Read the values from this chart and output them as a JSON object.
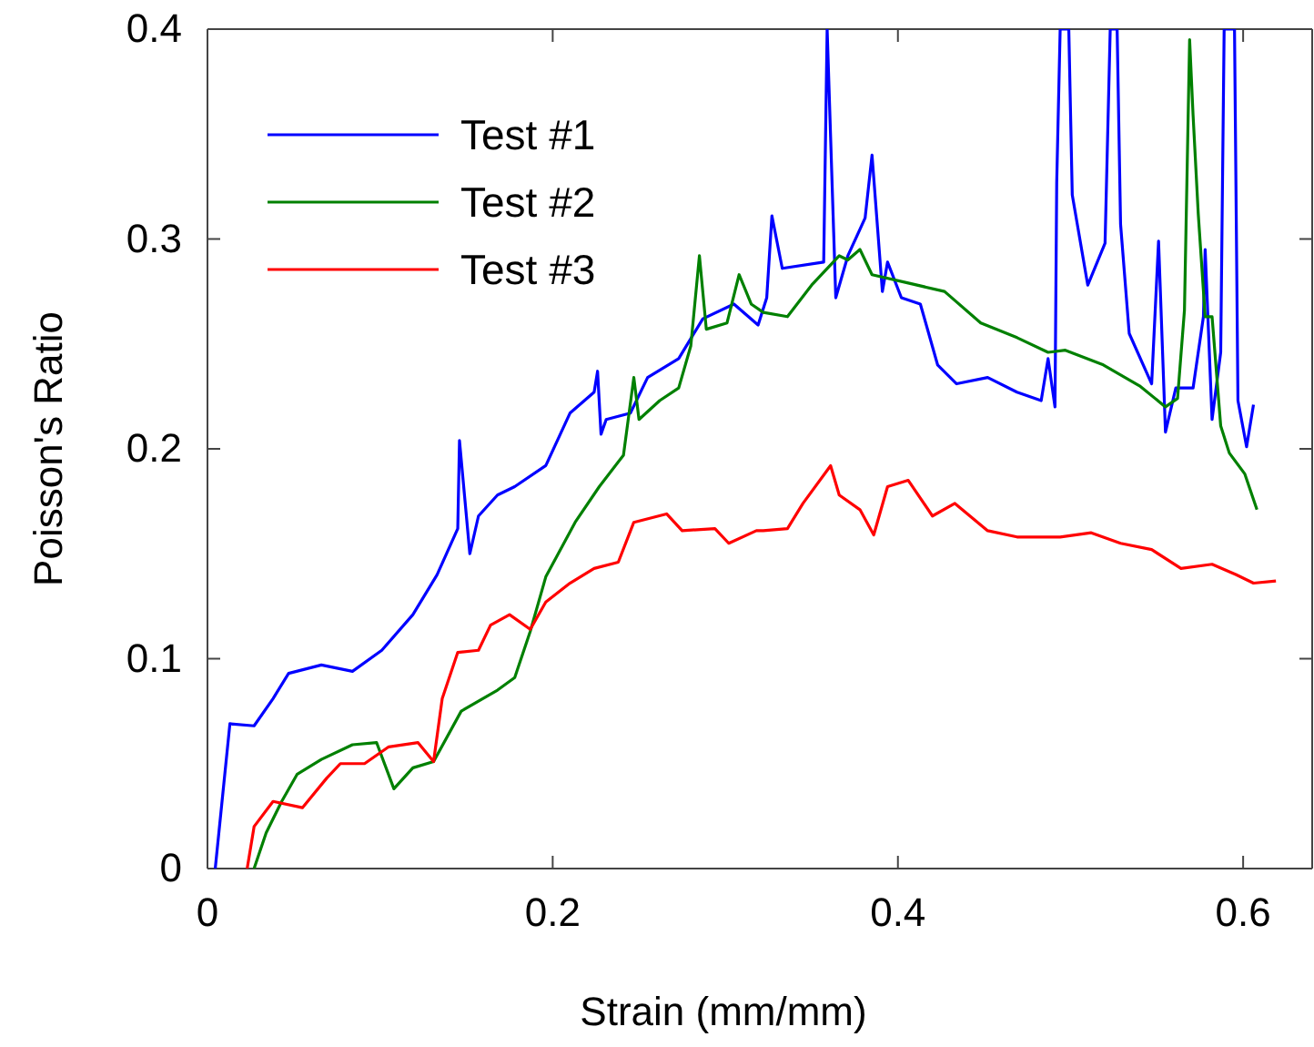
{
  "chart_data": {
    "type": "line",
    "xlabel": "Strain (mm/mm)",
    "ylabel": "Poisson's Ratio",
    "xlim": [
      0,
      0.64
    ],
    "ylim": [
      0,
      0.4
    ],
    "xticks": [
      0,
      0.2,
      0.4,
      0.6
    ],
    "yticks": [
      0,
      0.1,
      0.2,
      0.3,
      0.4
    ],
    "grid": false,
    "legend": "top left",
    "marker": "none",
    "line_style": "solid",
    "series": [
      {
        "name": "Test #1",
        "color": "#0000ff",
        "x": [
          0.0045,
          0.013,
          0.027,
          0.038,
          0.047,
          0.066,
          0.084,
          0.101,
          0.119,
          0.133,
          0.145,
          0.146,
          0.152,
          0.157,
          0.168,
          0.178,
          0.196,
          0.21,
          0.224,
          0.226,
          0.228,
          0.231,
          0.245,
          0.255,
          0.273,
          0.287,
          0.305,
          0.319,
          0.324,
          0.327,
          0.333,
          0.357,
          0.359,
          0.364,
          0.371,
          0.381,
          0.385,
          0.391,
          0.394,
          0.402,
          0.413,
          0.423,
          0.434,
          0.452,
          0.469,
          0.483,
          0.487,
          0.491,
          0.492,
          0.494,
          0.499,
          0.501,
          0.51,
          0.52,
          0.523,
          0.527,
          0.529,
          0.534,
          0.547,
          0.551,
          0.555,
          0.561,
          0.571,
          0.577,
          0.578,
          0.582,
          0.587,
          0.589,
          0.595,
          0.597,
          0.602,
          0.606
        ],
        "values": [
          0,
          0.069,
          0.068,
          0.081,
          0.093,
          0.097,
          0.094,
          0.104,
          0.121,
          0.14,
          0.162,
          0.204,
          0.15,
          0.168,
          0.178,
          0.182,
          0.192,
          0.217,
          0.227,
          0.237,
          0.207,
          0.214,
          0.217,
          0.234,
          0.243,
          0.262,
          0.269,
          0.259,
          0.272,
          0.311,
          0.286,
          0.289,
          0.4,
          0.272,
          0.292,
          0.31,
          0.34,
          0.275,
          0.289,
          0.272,
          0.269,
          0.24,
          0.231,
          0.234,
          0.227,
          0.223,
          0.243,
          0.22,
          0.327,
          0.4,
          0.4,
          0.321,
          0.278,
          0.298,
          0.4,
          0.4,
          0.307,
          0.255,
          0.231,
          0.299,
          0.208,
          0.229,
          0.229,
          0.263,
          0.295,
          0.214,
          0.246,
          0.4,
          0.4,
          0.223,
          0.201,
          0.221
        ]
      },
      {
        "name": "Test #2",
        "color": "#008000",
        "x": [
          0.027,
          0.034,
          0.043,
          0.052,
          0.066,
          0.084,
          0.098,
          0.108,
          0.119,
          0.131,
          0.147,
          0.168,
          0.178,
          0.187,
          0.196,
          0.213,
          0.227,
          0.241,
          0.247,
          0.25,
          0.262,
          0.273,
          0.28,
          0.285,
          0.289,
          0.301,
          0.308,
          0.315,
          0.322,
          0.336,
          0.35,
          0.366,
          0.371,
          0.378,
          0.385,
          0.406,
          0.427,
          0.448,
          0.469,
          0.487,
          0.497,
          0.519,
          0.54,
          0.555,
          0.562,
          0.566,
          0.569,
          0.571,
          0.574,
          0.578,
          0.582,
          0.587,
          0.592,
          0.601,
          0.608
        ],
        "values": [
          0,
          0.017,
          0.032,
          0.045,
          0.052,
          0.059,
          0.06,
          0.038,
          0.048,
          0.051,
          0.075,
          0.085,
          0.091,
          0.113,
          0.139,
          0.165,
          0.182,
          0.197,
          0.234,
          0.214,
          0.223,
          0.229,
          0.249,
          0.292,
          0.257,
          0.26,
          0.283,
          0.269,
          0.265,
          0.263,
          0.278,
          0.292,
          0.29,
          0.295,
          0.283,
          0.279,
          0.275,
          0.26,
          0.253,
          0.246,
          0.247,
          0.24,
          0.23,
          0.22,
          0.224,
          0.266,
          0.395,
          0.359,
          0.312,
          0.263,
          0.263,
          0.211,
          0.198,
          0.188,
          0.171
        ]
      },
      {
        "name": "Test #3",
        "color": "#ff0000",
        "x": [
          0.023,
          0.027,
          0.038,
          0.055,
          0.069,
          0.077,
          0.091,
          0.105,
          0.122,
          0.131,
          0.136,
          0.145,
          0.157,
          0.164,
          0.175,
          0.187,
          0.196,
          0.21,
          0.224,
          0.238,
          0.247,
          0.266,
          0.275,
          0.294,
          0.302,
          0.318,
          0.322,
          0.336,
          0.345,
          0.361,
          0.366,
          0.378,
          0.386,
          0.394,
          0.406,
          0.42,
          0.433,
          0.452,
          0.469,
          0.494,
          0.512,
          0.529,
          0.547,
          0.564,
          0.582,
          0.596,
          0.606,
          0.619
        ],
        "values": [
          0,
          0.02,
          0.032,
          0.029,
          0.043,
          0.05,
          0.05,
          0.058,
          0.06,
          0.051,
          0.081,
          0.103,
          0.104,
          0.116,
          0.121,
          0.114,
          0.127,
          0.136,
          0.143,
          0.146,
          0.165,
          0.169,
          0.161,
          0.162,
          0.155,
          0.161,
          0.161,
          0.162,
          0.174,
          0.192,
          0.178,
          0.171,
          0.159,
          0.182,
          0.185,
          0.168,
          0.174,
          0.161,
          0.158,
          0.158,
          0.16,
          0.155,
          0.152,
          0.143,
          0.145,
          0.14,
          0.136,
          0.137
        ]
      }
    ]
  }
}
